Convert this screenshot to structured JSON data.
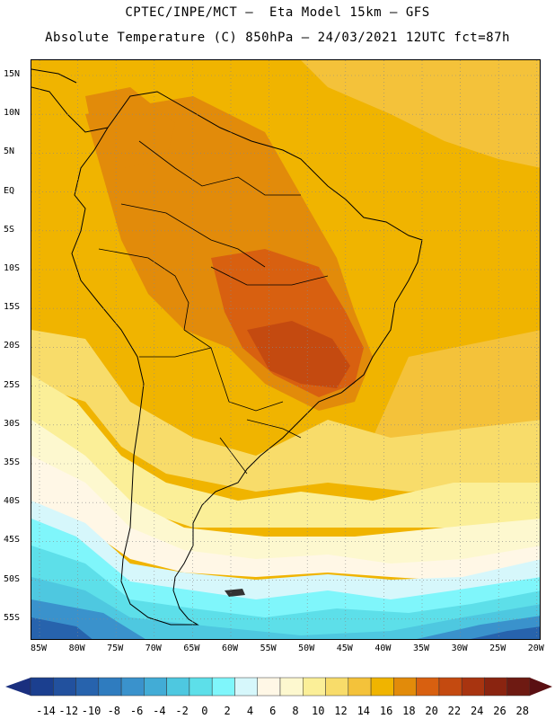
{
  "header": {
    "line1": "CPTEC/INPE/MCT –  Eta Model 15km – GFS",
    "line2": "Absolute Temperature (C) 850hPa – 24/03/2021 12UTC fct=87h"
  },
  "map": {
    "lat_labels": [
      "15N",
      "10N",
      "5N",
      "EQ",
      "5S",
      "10S",
      "15S",
      "20S",
      "25S",
      "30S",
      "35S",
      "40S",
      "45S",
      "50S",
      "55S"
    ],
    "lon_labels": [
      "85W",
      "80W",
      "75W",
      "70W",
      "65W",
      "60W",
      "55W",
      "50W",
      "45W",
      "40W",
      "35W",
      "30W",
      "25W",
      "20W"
    ],
    "field_colors": {
      "t20": "#f0b400",
      "t22": "#e28b0a",
      "t24": "#d86010",
      "t26": "#c44a10",
      "t18": "#f4c23a",
      "t16": "#f8dc6a",
      "t14": "#fbef98",
      "t10": "#fdf8cf",
      "t6": "#fff7e6",
      "t4": "#d6f7fb",
      "t2": "#7ff6fb",
      "t0": "#5ddfe9",
      "tm2": "#4ec8e0",
      "tm4": "#42acd6",
      "tm6": "#3a92cc",
      "tm8": "#2f7cbf",
      "tm10": "#2763ad"
    },
    "coast_color": "#000000",
    "grid_style": "dotted"
  },
  "colorbar": {
    "labels": [
      "-14",
      "-12",
      "-10",
      "-8",
      "-6",
      "-4",
      "-2",
      "0",
      "2",
      "4",
      "6",
      "8",
      "10",
      "12",
      "14",
      "16",
      "18",
      "20",
      "22",
      "24",
      "26",
      "28"
    ],
    "colors": [
      "#1b3f8f",
      "#22519e",
      "#2763ad",
      "#2f7cbf",
      "#3a92cc",
      "#42acd6",
      "#4ec8e0",
      "#5ddfe9",
      "#7ff6fb",
      "#d6f7fb",
      "#fff7e6",
      "#fdf8cf",
      "#fbef98",
      "#f8dc6a",
      "#f4c23a",
      "#f0b400",
      "#e28b0a",
      "#d86010",
      "#c44a10",
      "#a83410",
      "#8a2410",
      "#6e1a12"
    ],
    "left_arrow_color": "#1a2f7f",
    "right_arrow_color": "#5a0f12"
  }
}
